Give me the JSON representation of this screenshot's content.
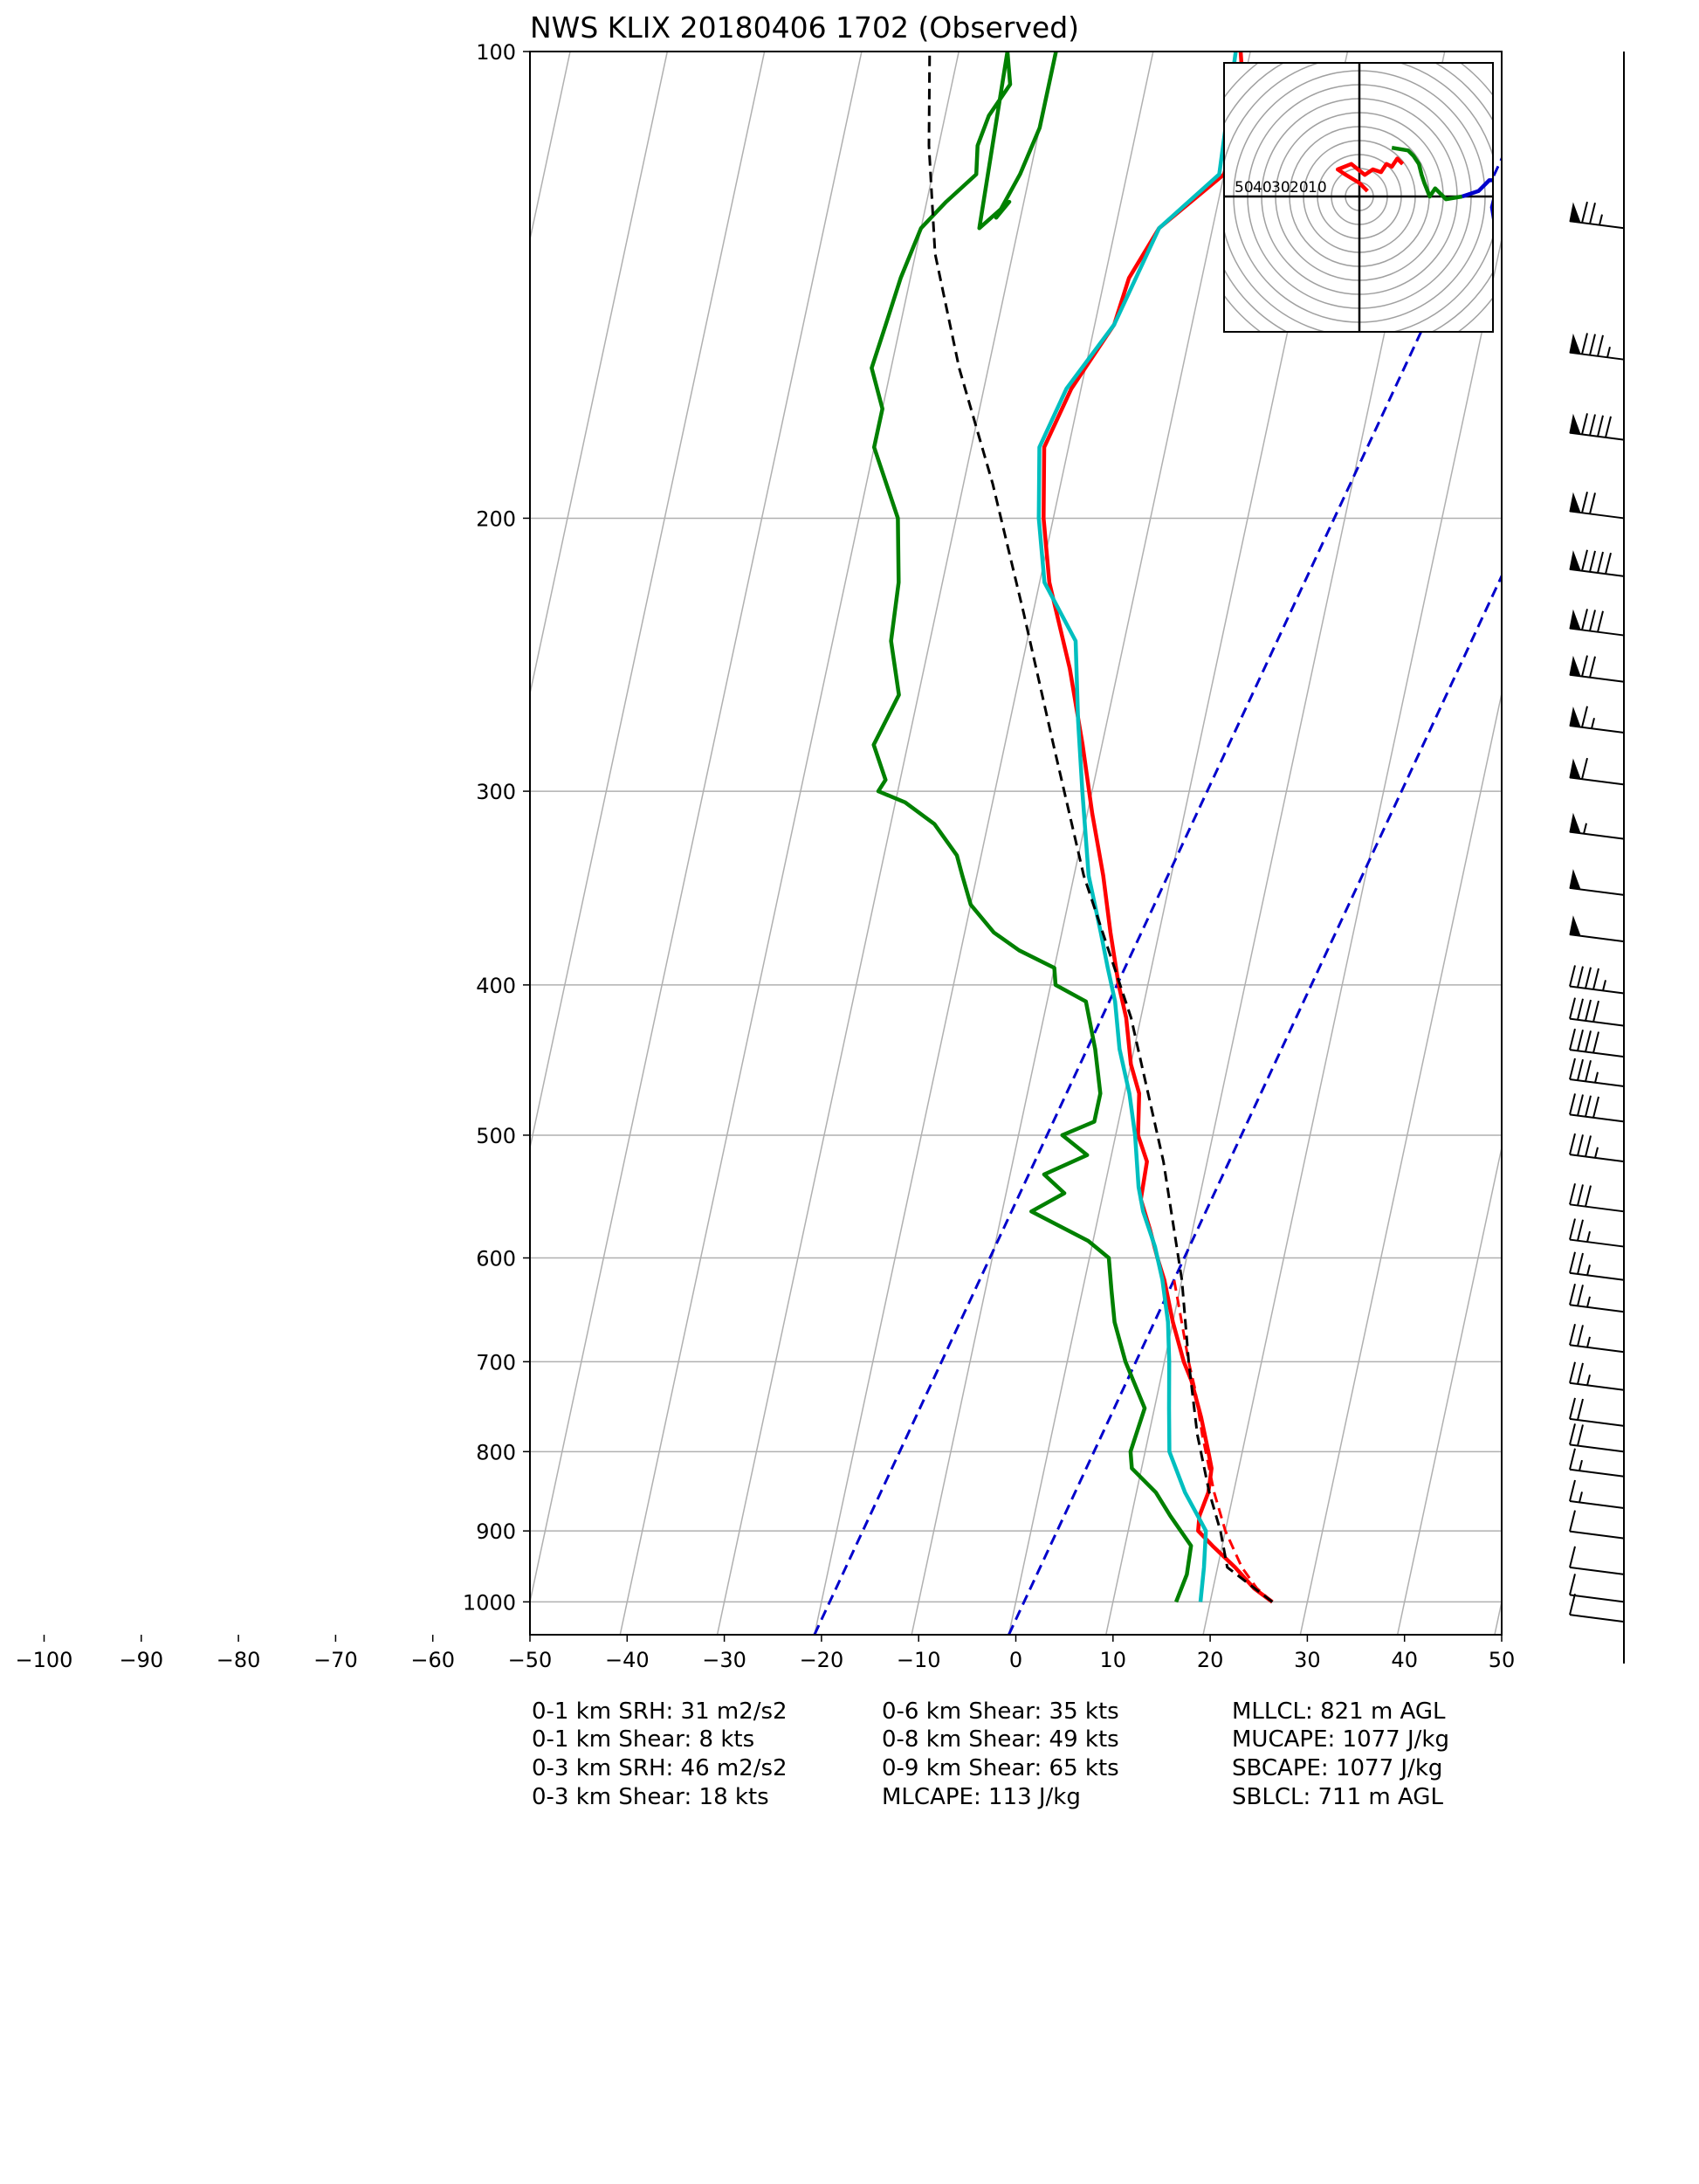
{
  "chart_data": {
    "type": "line",
    "title": "NWS KLIX 20180406 1702   (Observed)",
    "pressure_ticks": [
      "100",
      "200",
      "300",
      "400",
      "500",
      "600",
      "700",
      "800",
      "900",
      "1000"
    ],
    "temperature_ticks": [
      "−100",
      "−90",
      "−80",
      "−70",
      "−60",
      "−50",
      "−40",
      "−30",
      "−20",
      "−10",
      "0",
      "10",
      "20",
      "30",
      "40",
      "50"
    ],
    "xlim": [
      -50,
      50
    ],
    "ylim": [
      1050,
      100
    ],
    "y_scale": "log",
    "skew": true,
    "grid": true,
    "series": [
      {
        "color": "#ff0000",
        "style": "solid",
        "x": [
          26.4,
          24.2,
          21.8,
          19.0,
          17.2,
          17.0,
          17.4,
          17.2,
          16.5,
          15.0,
          13.2,
          12.0,
          10.0,
          8.2,
          7.0,
          5.6,
          4.0,
          3.8,
          2.3,
          1.5,
          0.0,
          -1.5,
          -3.0,
          -5.0,
          -7.0,
          -9.5,
          -12.0,
          -15.0,
          -19.0,
          -21.0,
          -22.5,
          -21.0,
          -18.0,
          -17.5,
          -15.5,
          -10.0,
          -9.5,
          -11.0
        ],
        "y": [
          1000,
          980,
          950,
          920,
          900,
          880,
          850,
          820,
          800,
          760,
          720,
          700,
          660,
          620,
          600,
          575,
          550,
          520,
          500,
          470,
          450,
          420,
          400,
          370,
          340,
          310,
          280,
          250,
          220,
          200,
          180,
          165,
          150,
          140,
          130,
          120,
          108,
          100
        ]
      },
      {
        "color": "#ff0000",
        "style": "dashed",
        "x": [
          26.4,
          24.5,
          22.5,
          20.0,
          18.0,
          15.5,
          13.8,
          12.5,
          10.5,
          9.2
        ],
        "y": [
          1000,
          980,
          950,
          900,
          850,
          780,
          730,
          700,
          650,
          620
        ]
      },
      {
        "color": "#00bfbf",
        "style": "solid",
        "x": [
          19.0,
          18.6,
          18.0,
          15.0,
          12.5,
          11.5,
          10.5,
          9.5,
          8.0,
          6.5,
          4.5,
          3.5,
          2.0,
          0.5,
          -1.5,
          -3.0,
          -4.5,
          -6.0,
          -8.5,
          -11.0,
          -13.0,
          -15.0,
          -19.5,
          -21.5,
          -23.0,
          -21.5,
          -18.0,
          -15.5,
          -10.5,
          -11.5
        ],
        "y": [
          1000,
          950,
          900,
          850,
          800,
          750,
          700,
          660,
          620,
          590,
          560,
          540,
          500,
          470,
          440,
          410,
          390,
          370,
          340,
          300,
          270,
          240,
          220,
          200,
          180,
          165,
          150,
          130,
          120,
          100
        ]
      },
      {
        "color": "#008000",
        "style": "solid",
        "x": [
          16.5,
          17.0,
          16.8,
          14.0,
          12.0,
          9.0,
          8.5,
          9.0,
          6.0,
          4.0,
          3.0,
          2.0,
          -0.5,
          -7.0,
          -4.0,
          -6.5,
          -2.5,
          -5.5,
          -2.5,
          -2.5,
          -4.0,
          -6.0,
          -9.5,
          -10.0,
          -14.0,
          -17.0,
          -20.0,
          -21.5,
          -22.5,
          -25.5,
          -29.0,
          -32.0,
          -31.5,
          -33.5,
          -32.0,
          -34.0,
          -34.5,
          -36.0,
          -40.0,
          -40.0,
          -42.0,
          -41.5,
          -41.0,
          -40.0,
          -38.0,
          -35.5,
          -36.0,
          -35.5,
          -34.0,
          -35.0,
          -34.0,
          -31.5,
          -32.5,
          -31.0,
          -30.0,
          -30.0
        ],
        "y": [
          1000,
          960,
          920,
          880,
          850,
          820,
          800,
          750,
          700,
          660,
          630,
          600,
          585,
          560,
          545,
          530,
          515,
          500,
          490,
          470,
          440,
          410,
          400,
          390,
          380,
          370,
          355,
          340,
          330,
          315,
          305,
          300,
          295,
          280,
          260,
          240,
          220,
          200,
          180,
          170,
          160,
          150,
          140,
          130,
          125,
          120,
          115,
          110,
          105,
          100,
          130,
          125,
          128,
          120,
          112,
          100
        ]
      },
      {
        "color": "#000000",
        "style": "dashed",
        "x": [
          26.4,
          21.0,
          19.5,
          17.5,
          15.0,
          12.5,
          10.0,
          5.5,
          -1.0,
          -9.0,
          -15.0,
          -21.0,
          -27.0,
          -33.0,
          -38.0,
          -41.0,
          -43.0
        ],
        "y": [
          1000,
          950,
          900,
          850,
          780,
          700,
          620,
          520,
          420,
          340,
          280,
          230,
          190,
          160,
          135,
          115,
          100
        ]
      }
    ],
    "mixing_ratio_lines": [
      {
        "color": "#0000cc",
        "style": "dashed",
        "bottom_temp_c": -20,
        "top_temp_c": 21
      },
      {
        "color": "#0000cc",
        "style": "dashed",
        "bottom_temp_c": 0,
        "top_temp_c": 41
      }
    ],
    "wind_barbs": [
      {
        "pressure": 130,
        "speed_kts": 75
      },
      {
        "pressure": 158,
        "speed_kts": 85
      },
      {
        "pressure": 178,
        "speed_kts": 90
      },
      {
        "pressure": 200,
        "speed_kts": 70
      },
      {
        "pressure": 218,
        "speed_kts": 90
      },
      {
        "pressure": 238,
        "speed_kts": 80
      },
      {
        "pressure": 255,
        "speed_kts": 70
      },
      {
        "pressure": 275,
        "speed_kts": 65
      },
      {
        "pressure": 297,
        "speed_kts": 60
      },
      {
        "pressure": 322,
        "speed_kts": 55
      },
      {
        "pressure": 350,
        "speed_kts": 50
      },
      {
        "pressure": 375,
        "speed_kts": 50
      },
      {
        "pressure": 405,
        "speed_kts": 45
      },
      {
        "pressure": 425,
        "speed_kts": 40
      },
      {
        "pressure": 445,
        "speed_kts": 40
      },
      {
        "pressure": 465,
        "speed_kts": 35
      },
      {
        "pressure": 490,
        "speed_kts": 40
      },
      {
        "pressure": 520,
        "speed_kts": 35
      },
      {
        "pressure": 560,
        "speed_kts": 30
      },
      {
        "pressure": 590,
        "speed_kts": 25
      },
      {
        "pressure": 620,
        "speed_kts": 25
      },
      {
        "pressure": 650,
        "speed_kts": 25
      },
      {
        "pressure": 690,
        "speed_kts": 25
      },
      {
        "pressure": 730,
        "speed_kts": 25
      },
      {
        "pressure": 770,
        "speed_kts": 20
      },
      {
        "pressure": 800,
        "speed_kts": 20
      },
      {
        "pressure": 830,
        "speed_kts": 15
      },
      {
        "pressure": 870,
        "speed_kts": 15
      },
      {
        "pressure": 910,
        "speed_kts": 10
      },
      {
        "pressure": 960,
        "speed_kts": 10
      },
      {
        "pressure": 1000,
        "speed_kts": 10
      },
      {
        "pressure": 1030,
        "speed_kts": 10
      }
    ],
    "hodograph": {
      "ring_labels": [
        "50",
        "40",
        "30",
        "20",
        "10"
      ],
      "traces": [
        {
          "color": "#ff0000",
          "u": [
            3,
            0,
            -5,
            -8,
            -3,
            2,
            5,
            8,
            10,
            12,
            14,
            16
          ],
          "v": [
            2,
            5,
            8,
            10,
            12,
            8,
            10,
            9,
            12,
            11,
            14,
            12
          ]
        },
        {
          "color": "#008000",
          "u": [
            12,
            18,
            20,
            22,
            23,
            24,
            26,
            28,
            32,
            38
          ],
          "v": [
            18,
            17,
            15,
            12,
            8,
            5,
            0,
            3,
            -1,
            0
          ]
        },
        {
          "color": "#0000cc",
          "u": [
            38,
            44,
            48,
            50,
            50,
            49,
            50
          ],
          "v": [
            0,
            2,
            6,
            6,
            0,
            -4,
            -10
          ]
        }
      ]
    },
    "indices": {
      "col1": [
        "0-1 km SRH: 31 m2/s2",
        "0-1 km Shear: 8 kts",
        "0-3 km SRH: 46 m2/s2",
        "0-3 km Shear: 18 kts"
      ],
      "col2": [
        "0-6 km Shear: 35 kts",
        "0-8 km Shear: 49 kts",
        "0-9 km Shear: 65 kts",
        "MLCAPE: 113 J/kg"
      ],
      "col3": [
        "MLLCL: 821 m AGL",
        "MUCAPE: 1077 J/kg",
        "SBCAPE: 1077 J/kg",
        "SBLCL: 711 m AGL"
      ]
    }
  }
}
